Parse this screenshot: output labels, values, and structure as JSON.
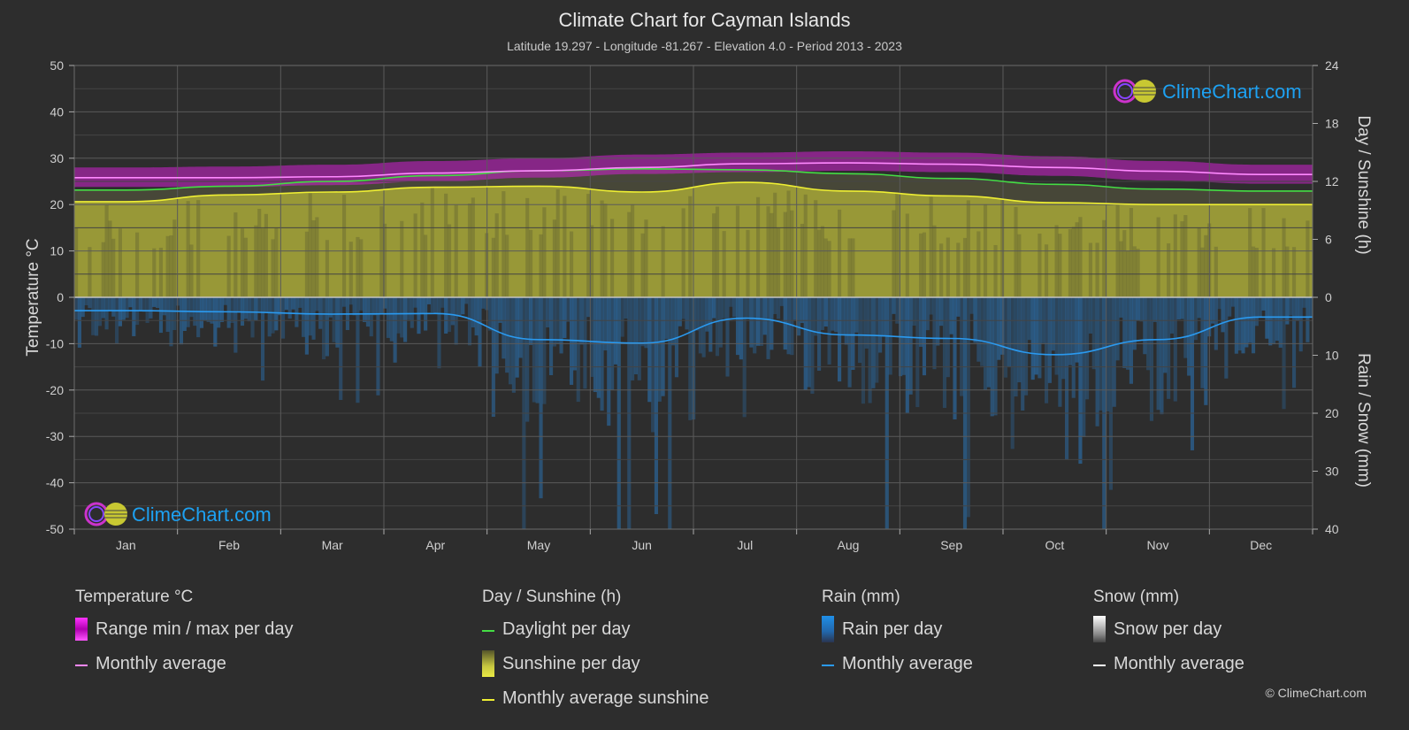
{
  "title": "Climate Chart for Cayman Islands",
  "subtitle": "Latitude 19.297 - Longitude -81.267 - Elevation 4.0 - Period 2013 - 2023",
  "logo_text": "ClimeChart.com",
  "copyright": "© ClimeChart.com",
  "colors": {
    "background": "#2d2d2d",
    "temp_range": "#d020d0",
    "temp_avg": "#ff88ff",
    "daylight": "#44dd44",
    "sunshine_fill": "#b8b838",
    "sunshine_avg": "#eeee33",
    "rain": "#2a82d0",
    "rain_avg": "#2a9af0",
    "snow_avg": "#ffffff"
  },
  "chart_data": {
    "type": "area",
    "months": [
      "Jan",
      "Feb",
      "Mar",
      "Apr",
      "May",
      "Jun",
      "Jul",
      "Aug",
      "Sep",
      "Oct",
      "Nov",
      "Dec"
    ],
    "axes": {
      "left": {
        "label": "Temperature °C",
        "min": -50,
        "max": 50,
        "ticks": [
          50,
          40,
          30,
          20,
          10,
          0,
          -10,
          -20,
          -30,
          -40,
          -50
        ]
      },
      "right_top": {
        "label": "Day / Sunshine (h)",
        "min": 0,
        "max": 24,
        "ticks": [
          24,
          18,
          12,
          6,
          0
        ]
      },
      "right_bottom": {
        "label": "Rain / Snow (mm)",
        "min": 0,
        "max": 40,
        "ticks": [
          0,
          10,
          20,
          30,
          40
        ]
      }
    },
    "grid": true,
    "series": [
      {
        "name": "Monthly average",
        "group": "Temperature °C",
        "unit": "°C",
        "values": [
          25.8,
          25.8,
          26.0,
          26.8,
          27.3,
          28.0,
          28.8,
          29.0,
          28.7,
          28.0,
          27.2,
          26.5
        ]
      },
      {
        "name": "Range min / max per day",
        "group": "Temperature °C",
        "unit": "°C",
        "min": [
          23.8,
          23.8,
          24.2,
          25.0,
          25.8,
          26.6,
          27.0,
          27.3,
          27.0,
          26.2,
          25.2,
          24.5
        ],
        "max": [
          28.0,
          28.2,
          28.6,
          29.4,
          30.0,
          30.8,
          31.2,
          31.5,
          31.2,
          30.4,
          29.4,
          28.6
        ]
      },
      {
        "name": "Daylight per day",
        "group": "Day / Sunshine (h)",
        "unit": "h",
        "values": [
          11.1,
          11.5,
          12.0,
          12.6,
          13.1,
          13.3,
          13.2,
          12.8,
          12.3,
          11.7,
          11.2,
          11.0
        ]
      },
      {
        "name": "Sunshine per day",
        "group": "Day / Sunshine (h)",
        "unit": "h",
        "values": [
          9.9,
          10.6,
          10.9,
          11.4,
          11.5,
          10.9,
          11.9,
          11.0,
          10.5,
          9.8,
          9.6,
          9.6
        ]
      },
      {
        "name": "Monthly average sunshine",
        "group": "Day / Sunshine (h)",
        "unit": "h",
        "values": [
          9.9,
          10.6,
          10.9,
          11.4,
          11.5,
          10.9,
          11.9,
          11.0,
          10.5,
          9.8,
          9.6,
          9.6
        ]
      },
      {
        "name": "Rain per day",
        "group": "Rain (mm)",
        "unit": "mm",
        "values": [
          2.3,
          2.5,
          2.9,
          2.8,
          7.3,
          7.9,
          3.6,
          6.5,
          7.1,
          9.9,
          7.3,
          3.4
        ]
      },
      {
        "name": "Monthly average",
        "group": "Rain (mm)",
        "unit": "mm",
        "values": [
          2.3,
          2.5,
          2.9,
          2.8,
          7.3,
          7.9,
          3.6,
          6.5,
          7.1,
          9.9,
          7.3,
          3.4
        ]
      },
      {
        "name": "Snow per day",
        "group": "Snow (mm)",
        "unit": "mm",
        "values": [
          0,
          0,
          0,
          0,
          0,
          0,
          0,
          0,
          0,
          0,
          0,
          0
        ]
      },
      {
        "name": "Monthly average",
        "group": "Snow (mm)",
        "unit": "mm",
        "values": [
          0,
          0,
          0,
          0,
          0,
          0,
          0,
          0,
          0,
          0,
          0,
          0
        ]
      }
    ]
  },
  "legend": {
    "temperature": {
      "title": "Temperature °C",
      "items": [
        "Range min / max per day",
        "Monthly average"
      ]
    },
    "sunshine": {
      "title": "Day / Sunshine (h)",
      "items": [
        "Daylight per day",
        "Sunshine per day",
        "Monthly average sunshine"
      ]
    },
    "rain": {
      "title": "Rain (mm)",
      "items": [
        "Rain per day",
        "Monthly average"
      ]
    },
    "snow": {
      "title": "Snow (mm)",
      "items": [
        "Snow per day",
        "Monthly average"
      ]
    }
  }
}
